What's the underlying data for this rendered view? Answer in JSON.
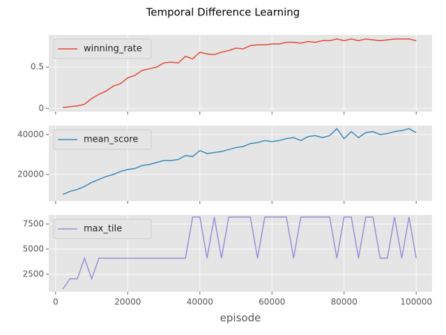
{
  "chart_data": [
    {
      "type": "line",
      "title": "Temporal Difference Learning",
      "legend": "upper left",
      "grid": true,
      "x": [
        2000,
        4000,
        6000,
        8000,
        10000,
        12000,
        14000,
        16000,
        18000,
        20000,
        22000,
        24000,
        26000,
        28000,
        30000,
        32000,
        34000,
        36000,
        38000,
        40000,
        42000,
        44000,
        46000,
        48000,
        50000,
        52000,
        54000,
        56000,
        58000,
        60000,
        62000,
        64000,
        66000,
        68000,
        70000,
        72000,
        74000,
        76000,
        78000,
        80000,
        82000,
        84000,
        86000,
        88000,
        90000,
        92000,
        94000,
        96000,
        98000,
        100000
      ],
      "series": [
        {
          "name": "winning_rate",
          "color": "#e24a33",
          "values": [
            0.01,
            0.02,
            0.03,
            0.05,
            0.12,
            0.17,
            0.21,
            0.27,
            0.3,
            0.37,
            0.4,
            0.46,
            0.48,
            0.5,
            0.55,
            0.56,
            0.55,
            0.63,
            0.6,
            0.68,
            0.66,
            0.65,
            0.68,
            0.7,
            0.73,
            0.72,
            0.76,
            0.77,
            0.77,
            0.78,
            0.78,
            0.8,
            0.8,
            0.79,
            0.81,
            0.8,
            0.82,
            0.82,
            0.84,
            0.82,
            0.84,
            0.82,
            0.84,
            0.83,
            0.82,
            0.83,
            0.84,
            0.84,
            0.84,
            0.82
          ]
        }
      ],
      "xlim": [
        -1900,
        104400
      ],
      "xticks": [
        0,
        20000,
        40000,
        60000,
        80000,
        100000
      ],
      "ylim": [
        -0.04,
        0.89
      ],
      "yticks": [
        0.0,
        0.5
      ]
    },
    {
      "type": "line",
      "legend": "upper left",
      "grid": true,
      "x": [
        2000,
        4000,
        6000,
        8000,
        10000,
        12000,
        14000,
        16000,
        18000,
        20000,
        22000,
        24000,
        26000,
        28000,
        30000,
        32000,
        34000,
        36000,
        38000,
        40000,
        42000,
        44000,
        46000,
        48000,
        50000,
        52000,
        54000,
        56000,
        58000,
        60000,
        62000,
        64000,
        66000,
        68000,
        70000,
        72000,
        74000,
        76000,
        78000,
        80000,
        82000,
        84000,
        86000,
        88000,
        90000,
        92000,
        94000,
        96000,
        98000,
        100000
      ],
      "series": [
        {
          "name": "mean_score",
          "color": "#348abd",
          "values": [
            10000,
            11500,
            12500,
            14000,
            16000,
            17500,
            19000,
            20000,
            21500,
            22500,
            23000,
            24500,
            25000,
            26000,
            27000,
            27000,
            27500,
            29500,
            29000,
            32000,
            30500,
            31000,
            31500,
            32500,
            33500,
            34000,
            35500,
            36000,
            37000,
            36500,
            37000,
            38000,
            38500,
            37000,
            39000,
            39500,
            38500,
            39500,
            43000,
            38000,
            41500,
            38500,
            41000,
            41500,
            40000,
            40500,
            41500,
            42000,
            43000,
            41000
          ]
        }
      ],
      "xlim": [
        -1900,
        104400
      ],
      "xticks": [
        0,
        20000,
        40000,
        60000,
        80000,
        100000
      ],
      "ylim": [
        6700,
        44500
      ],
      "yticks": [
        20000,
        40000
      ]
    },
    {
      "type": "line",
      "legend": "upper left",
      "grid": true,
      "xlabel": "episode",
      "x": [
        2000,
        4000,
        6000,
        8000,
        10000,
        12000,
        14000,
        16000,
        18000,
        20000,
        22000,
        24000,
        26000,
        28000,
        30000,
        32000,
        34000,
        36000,
        38000,
        40000,
        42000,
        44000,
        46000,
        48000,
        50000,
        52000,
        54000,
        56000,
        58000,
        60000,
        62000,
        64000,
        66000,
        68000,
        70000,
        72000,
        74000,
        76000,
        78000,
        80000,
        82000,
        84000,
        86000,
        88000,
        90000,
        92000,
        94000,
        96000,
        98000,
        100000
      ],
      "series": [
        {
          "name": "max_tile",
          "color": "#988ed5",
          "values": [
            1024,
            2048,
            2048,
            4096,
            2048,
            4096,
            4096,
            4096,
            4096,
            4096,
            4096,
            4096,
            4096,
            4096,
            4096,
            4096,
            4096,
            4096,
            8192,
            8192,
            4096,
            8192,
            4096,
            8192,
            8192,
            8192,
            8192,
            4096,
            8192,
            8192,
            8192,
            8192,
            4096,
            8192,
            8192,
            8192,
            8192,
            8192,
            4096,
            8192,
            8192,
            4096,
            8192,
            8192,
            4096,
            4096,
            8192,
            4096,
            8192,
            4096
          ]
        }
      ],
      "xlim": [
        -1900,
        104400
      ],
      "xticks": [
        0,
        20000,
        40000,
        60000,
        80000,
        100000
      ],
      "ylim": [
        760,
        8400
      ],
      "yticks": [
        2500,
        5000,
        7500
      ]
    }
  ]
}
